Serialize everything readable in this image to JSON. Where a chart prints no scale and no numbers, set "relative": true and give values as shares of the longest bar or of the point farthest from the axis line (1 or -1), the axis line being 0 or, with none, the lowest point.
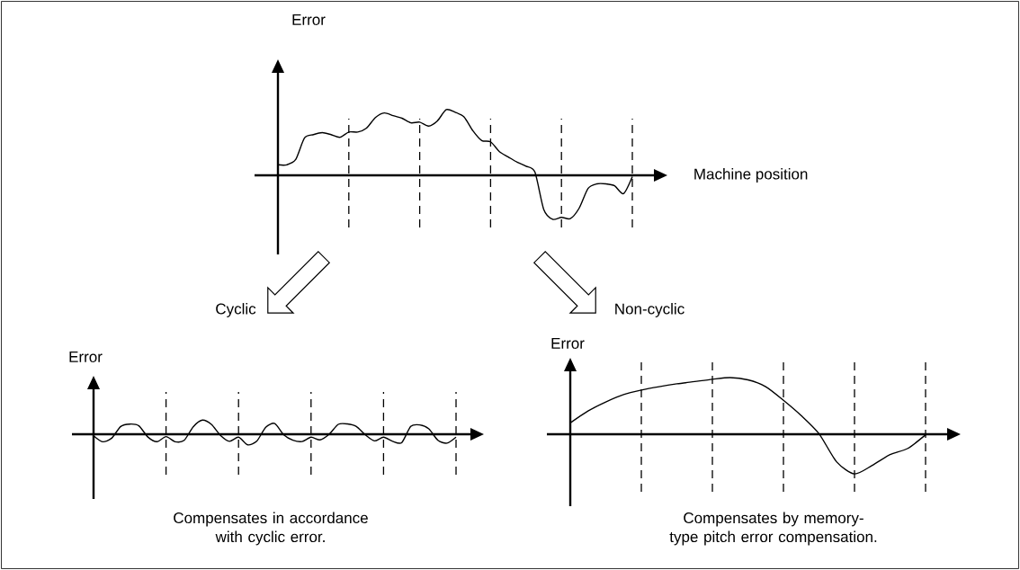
{
  "chart_data": [
    {
      "type": "line",
      "relative": true,
      "ylabel": "Error",
      "xlabel": "Machine position",
      "annotations": [
        "Cyclic",
        "Non-cyclic"
      ],
      "categories": [
        null,
        null,
        null,
        null,
        null,
        null,
        null,
        null,
        null,
        null,
        null,
        null,
        null,
        null,
        null,
        null,
        null,
        null,
        null,
        null,
        null,
        null,
        null,
        null,
        null,
        null,
        null,
        null,
        null,
        null,
        null,
        null,
        null,
        null,
        null,
        null,
        null,
        null,
        null,
        null,
        null
      ],
      "grid": "x",
      "series": [
        {
          "color": "#000000",
          "values": [
            0.16,
            0.16,
            0.24,
            0.57,
            0.62,
            0.65,
            0.62,
            0.58,
            0.66,
            0.66,
            0.72,
            0.88,
            0.95,
            0.91,
            0.87,
            0.8,
            0.81,
            0.75,
            0.83,
            1.0,
            0.96,
            0.89,
            0.68,
            0.53,
            0.51,
            0.36,
            0.28,
            0.2,
            0.14,
            0.05,
            -0.52,
            -0.67,
            -0.64,
            -0.66,
            -0.5,
            -0.2,
            -0.13,
            -0.13,
            -0.16,
            -0.28,
            -0.02
          ]
        }
      ]
    },
    {
      "type": "line",
      "relative": true,
      "ylabel": "Error",
      "annotations": [
        "Compensates in accordance with cyclic error."
      ],
      "categories": [
        null,
        null,
        null,
        null,
        null,
        null,
        null,
        null,
        null,
        null,
        null,
        null,
        null,
        null,
        null,
        null,
        null,
        null,
        null,
        null,
        null,
        null,
        null,
        null,
        null,
        null,
        null,
        null,
        null,
        null,
        null,
        null,
        null,
        null,
        null,
        null,
        null,
        null,
        null,
        null,
        null
      ],
      "grid": "x",
      "series": [
        {
          "color": "#000000",
          "values": [
            -0.11,
            -0.53,
            -0.28,
            0.55,
            0.72,
            0.6,
            -0.2,
            -0.53,
            -0.17,
            -0.53,
            -0.43,
            0.53,
            1.0,
            0.7,
            -0.08,
            -0.5,
            -0.21,
            -0.75,
            -0.5,
            0.5,
            0.76,
            -0.05,
            -0.42,
            -0.52,
            -0.21,
            -0.4,
            0.0,
            0.7,
            0.73,
            0.55,
            -0.05,
            -0.47,
            -0.21,
            -0.5,
            -0.6,
            0.55,
            0.66,
            0.38,
            -0.43,
            -0.63,
            -0.21
          ]
        }
      ]
    },
    {
      "type": "line",
      "relative": true,
      "ylabel": "Error",
      "annotations": [
        "Compensates by memory-type pitch error compensation."
      ],
      "categories": [
        null,
        null,
        null,
        null,
        null,
        null,
        null,
        null,
        null,
        null,
        null,
        null,
        null,
        null,
        null,
        null,
        null,
        null,
        null,
        null,
        null
      ],
      "grid": "x",
      "series": [
        {
          "color": "#000000",
          "values": [
            0.2,
            0.41,
            0.57,
            0.7,
            0.78,
            0.84,
            0.89,
            0.93,
            0.97,
            1.0,
            0.96,
            0.84,
            0.6,
            0.33,
            0.01,
            -0.49,
            -0.7,
            -0.55,
            -0.36,
            -0.25,
            -0.01
          ]
        }
      ]
    }
  ]
}
